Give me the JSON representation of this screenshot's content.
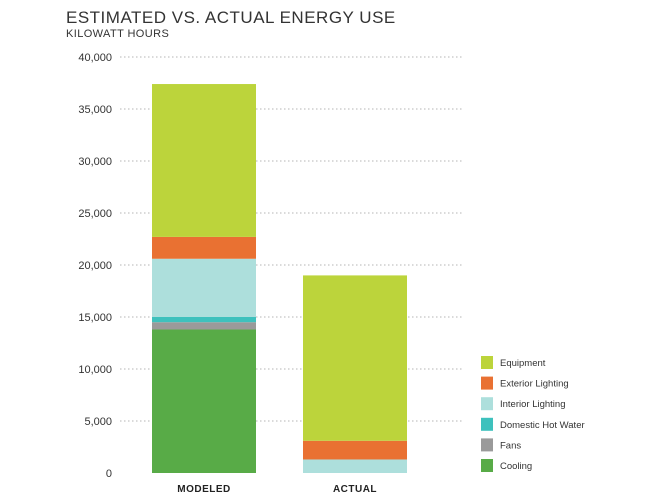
{
  "title": "ESTIMATED VS. ACTUAL ENERGY USE",
  "subtitle": "KILOWATT HOURS",
  "chart_data": {
    "type": "bar",
    "stacked": true,
    "title": "ESTIMATED VS. ACTUAL ENERGY USE",
    "ylabel": "KILOWATT HOURS",
    "xlabel": "",
    "categories": [
      "MODELED",
      "ACTUAL"
    ],
    "ylim": [
      0,
      40000
    ],
    "yticks": [
      0,
      5000,
      10000,
      15000,
      20000,
      25000,
      30000,
      35000,
      40000
    ],
    "ytick_labels": [
      "0",
      "5,000",
      "10,000",
      "15,000",
      "20,000",
      "25,000",
      "30,000",
      "35,000",
      "40,000"
    ],
    "grid": true,
    "legend_position": "bottom-right",
    "series": [
      {
        "name": "Cooling",
        "color": "#58ab47",
        "values": [
          13800,
          0
        ]
      },
      {
        "name": "Fans",
        "color": "#9a9a9a",
        "values": [
          700,
          0
        ]
      },
      {
        "name": "Domestic Hot Water",
        "color": "#3ec1bd",
        "values": [
          500,
          0
        ]
      },
      {
        "name": "Interior Lighting",
        "color": "#addfdc",
        "values": [
          5600,
          1300
        ]
      },
      {
        "name": "Exterior Lighting",
        "color": "#e97132",
        "values": [
          2100,
          1800
        ]
      },
      {
        "name": "Equipment",
        "color": "#bcd43b",
        "values": [
          14700,
          15900
        ]
      }
    ],
    "legend_order": [
      "Equipment",
      "Exterior Lighting",
      "Interior Lighting",
      "Domestic Hot Water",
      "Fans",
      "Cooling"
    ]
  }
}
